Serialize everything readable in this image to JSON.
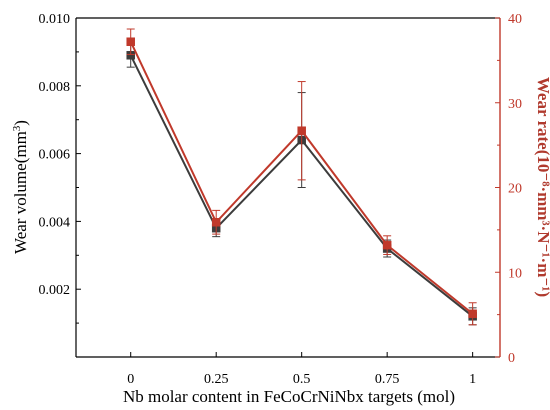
{
  "chart_data": {
    "type": "line",
    "x": [
      0,
      0.25,
      0.5,
      0.75,
      1
    ],
    "x_tick_labels": [
      "0",
      "0.25",
      "0.5",
      "0.75",
      "1"
    ],
    "xlabel": "Nb molar content in FeCoCrNiNbx targets (mol)",
    "ylabel_left": {
      "base": "Wear volume(mm",
      "sup": "3",
      "end": ")"
    },
    "ylabel_right": "Wear rate(10⁻⁸·mm³·N⁻¹·m⁻¹)",
    "ylim_left": [
      0,
      0.01
    ],
    "ylim_right": [
      0,
      40
    ],
    "y_ticks_left": [
      0,
      0.002,
      0.004,
      0.006,
      0.008,
      0.01
    ],
    "y_tick_labels_left": [
      "",
      "0.002",
      "0.004",
      "0.006",
      "0.008",
      "0.010"
    ],
    "y_ticks_right": [
      0,
      10,
      20,
      30,
      40
    ],
    "y_tick_labels_right": [
      "0",
      "10",
      "20",
      "30",
      "40"
    ],
    "grid": false,
    "series": [
      {
        "axis": "left",
        "color": "#3c3c3c",
        "values": [
          0.0089,
          0.0038,
          0.0064,
          0.0032,
          0.0012
        ],
        "error": [
          0.00035,
          0.00025,
          0.0014,
          0.00025,
          0.00025
        ]
      },
      {
        "axis": "right",
        "color": "#c0392b",
        "values": [
          37.2,
          15.9,
          26.7,
          13.2,
          5.1
        ],
        "error": [
          1.5,
          1.4,
          5.8,
          1.1,
          1.3
        ]
      }
    ]
  }
}
